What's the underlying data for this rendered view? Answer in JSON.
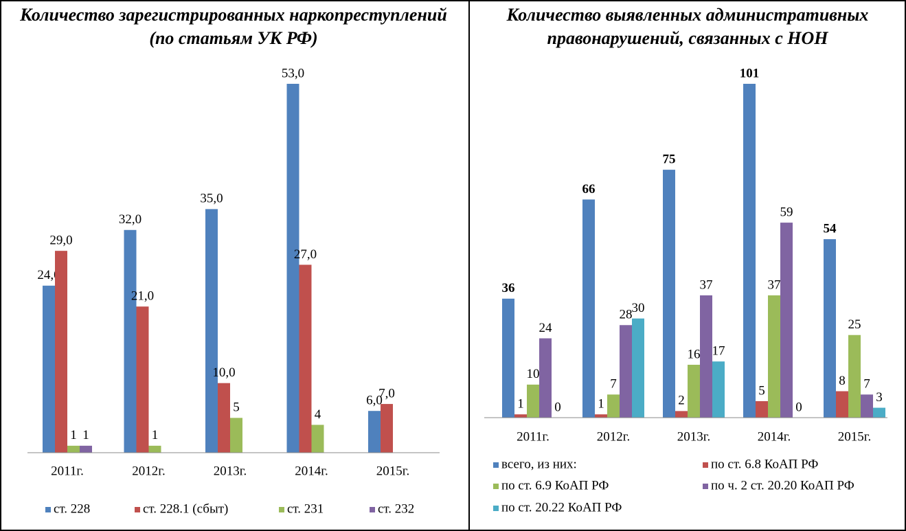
{
  "chart_data": [
    {
      "type": "bar",
      "title": "Количество зарегистрированных наркопреступлений (по статьям УК РФ)",
      "categories": [
        "2011г.",
        "2012г.",
        "2013г.",
        "2014г.",
        "2015г."
      ],
      "series": [
        {
          "name": "ст. 228",
          "color": "#4f81bd",
          "values": [
            24,
            32,
            35,
            53,
            6
          ],
          "value_labels": [
            "24,0",
            "32,0",
            "35,0",
            "53,0",
            "6,0"
          ]
        },
        {
          "name": "ст. 228.1 (сбыт)",
          "color": "#c0504d",
          "values": [
            29,
            21,
            10,
            27,
            7
          ],
          "value_labels": [
            "29,0",
            "21,0",
            "10,0",
            "27,0",
            "7,0"
          ]
        },
        {
          "name": "ст. 231",
          "color": "#9bbb59",
          "values": [
            1,
            1,
            5,
            4,
            null
          ]
        },
        {
          "name": "ст. 232",
          "color": "#8064a2",
          "values": [
            1,
            null,
            null,
            null,
            null
          ]
        }
      ]
    },
    {
      "type": "bar",
      "title": "Количество выявленных административных правонарушений, связанных с НОН",
      "categories": [
        "2011г.",
        "2012г.",
        "2013г.",
        "2014г.",
        "2015г."
      ],
      "series": [
        {
          "name": "всего, из них:",
          "color": "#4f81bd",
          "values": [
            36,
            66,
            75,
            101,
            54
          ]
        },
        {
          "name": "по ст. 6.8 КоАП РФ",
          "color": "#c0504d",
          "values": [
            1,
            1,
            2,
            5,
            8
          ]
        },
        {
          "name": "по ст. 6.9 КоАП РФ",
          "color": "#9bbb59",
          "values": [
            10,
            7,
            16,
            37,
            25
          ]
        },
        {
          "name": "по ч. 2 ст. 20.20 КоАП РФ",
          "color": "#8064a2",
          "values": [
            24,
            28,
            37,
            59,
            7
          ]
        },
        {
          "name": "по ст. 20.22 КоАП РФ",
          "color": "#4bacc6",
          "values": [
            0,
            30,
            17,
            0,
            3
          ]
        }
      ]
    }
  ]
}
